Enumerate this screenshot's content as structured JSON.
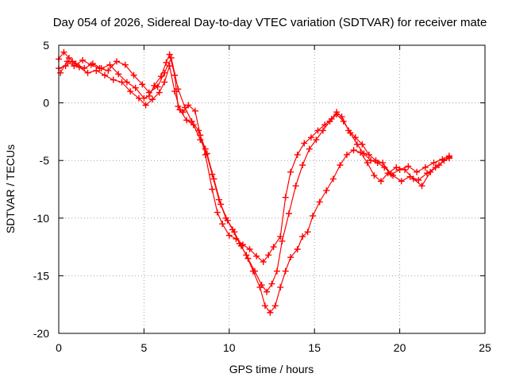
{
  "chart_data": {
    "type": "scatter",
    "title": "Day 054 of 2026, Sidereal Day-to-day VTEC variation (SDTVAR) for receiver mate",
    "xlabel": "GPS time / hours",
    "ylabel": "SDTVAR / TECUs",
    "xlim": [
      0,
      25
    ],
    "ylim": [
      -20,
      5
    ],
    "xticks": [
      "0",
      "5",
      "10",
      "15",
      "20",
      "25"
    ],
    "yticks": [
      "5",
      "0",
      "-5",
      "-10",
      "-15",
      "-20"
    ],
    "grid": true,
    "marker": "+",
    "color": "#ff0000",
    "series": [
      {
        "x": [
          0.0,
          0.3,
          0.6,
          1.0,
          1.5,
          2.0,
          2.5,
          3.0,
          3.5,
          4.0,
          4.5,
          5.0,
          5.3,
          5.6,
          6.0,
          6.3,
          6.5,
          6.8,
          7.0,
          7.3,
          7.6,
          8.0,
          8.3,
          8.6,
          9.0,
          9.3,
          9.6,
          10.0,
          10.4,
          10.8,
          11.2,
          11.6,
          12.0,
          12.3,
          12.6,
          13.0,
          13.3,
          13.6,
          14.0,
          14.4,
          14.8,
          15.2,
          15.6,
          16.0,
          16.3,
          16.6,
          17.0,
          17.4,
          17.8,
          18.2,
          18.6,
          19.0,
          19.5,
          20.0,
          20.5,
          21.0,
          21.5,
          22.0,
          22.5,
          22.9
        ],
        "y": [
          3.8,
          4.4,
          3.9,
          3.4,
          3.0,
          3.4,
          3.0,
          3.3,
          2.5,
          1.8,
          1.3,
          0.4,
          0.6,
          1.5,
          2.3,
          3.5,
          4.2,
          2.4,
          -0.3,
          -0.8,
          -0.2,
          -0.7,
          -2.8,
          -4.5,
          -7.5,
          -9.5,
          -10.5,
          -11.5,
          -11.8,
          -12.3,
          -12.7,
          -13.3,
          -13.8,
          -13.2,
          -12.5,
          -11.6,
          -8.2,
          -6.0,
          -4.5,
          -3.5,
          -3.0,
          -2.4,
          -1.9,
          -1.4,
          -0.8,
          -1.2,
          -2.4,
          -3.0,
          -3.6,
          -4.5,
          -5.0,
          -5.2,
          -6.2,
          -5.8,
          -5.5,
          -6.0,
          -5.6,
          -5.2,
          -4.9,
          -4.6
        ]
      },
      {
        "x": [
          0.0,
          0.4,
          0.8,
          1.2,
          1.7,
          2.2,
          2.7,
          3.2,
          3.7,
          4.2,
          4.7,
          5.1,
          5.5,
          5.9,
          6.2,
          6.5,
          6.8,
          7.1,
          7.5,
          7.9,
          8.3,
          8.7,
          9.1,
          9.5,
          9.9,
          10.3,
          10.7,
          11.1,
          11.5,
          11.9,
          12.2,
          12.5,
          12.8,
          13.1,
          13.5,
          13.9,
          14.3,
          14.7,
          15.1,
          15.5,
          15.9,
          16.3,
          16.7,
          17.1,
          17.5,
          17.9,
          18.3,
          18.7,
          19.1,
          19.6,
          20.1,
          20.6,
          21.1,
          21.6,
          22.1,
          22.6,
          22.9
        ],
        "y": [
          3.0,
          3.2,
          3.6,
          3.1,
          2.6,
          2.8,
          2.4,
          2.0,
          1.8,
          1.0,
          0.4,
          -0.2,
          0.3,
          0.9,
          1.8,
          3.2,
          1.0,
          -0.6,
          -1.5,
          -1.9,
          -3.2,
          -4.4,
          -6.6,
          -8.8,
          -10.2,
          -11.2,
          -12.4,
          -13.5,
          -14.6,
          -15.8,
          -16.4,
          -15.7,
          -14.6,
          -12.0,
          -9.6,
          -7.2,
          -5.4,
          -4.0,
          -3.2,
          -2.4,
          -1.6,
          -1.0,
          -1.6,
          -2.6,
          -3.6,
          -4.4,
          -5.0,
          -5.2,
          -5.6,
          -6.3,
          -6.8,
          -6.4,
          -6.7,
          -6.1,
          -5.6,
          -5.0,
          -4.8
        ]
      },
      {
        "x": [
          0.1,
          0.5,
          0.9,
          1.4,
          1.9,
          2.4,
          2.9,
          3.4,
          3.9,
          4.4,
          4.9,
          5.3,
          5.8,
          6.2,
          6.6,
          7.0,
          7.4,
          7.8,
          8.2,
          8.6,
          9.0,
          9.4,
          9.8,
          10.2,
          10.6,
          11.0,
          11.4,
          11.8,
          12.1,
          12.4,
          12.7,
          13.0,
          13.3,
          13.6,
          14.0,
          14.3,
          14.6,
          14.9,
          15.3,
          15.7,
          16.1,
          16.5,
          16.9,
          17.3,
          17.7,
          18.1,
          18.5,
          18.9,
          19.3,
          19.8,
          20.3,
          20.8,
          21.3,
          21.8,
          22.3,
          22.9
        ],
        "y": [
          2.6,
          3.6,
          3.2,
          3.7,
          3.3,
          3.0,
          2.8,
          3.6,
          3.3,
          2.4,
          1.6,
          0.9,
          1.4,
          2.6,
          3.9,
          1.2,
          -0.4,
          -1.6,
          -2.4,
          -4.0,
          -6.2,
          -8.4,
          -10.0,
          -11.0,
          -12.2,
          -13.2,
          -14.6,
          -16.0,
          -17.6,
          -18.2,
          -17.6,
          -16.0,
          -14.6,
          -13.4,
          -12.7,
          -11.6,
          -11.2,
          -9.8,
          -8.6,
          -7.6,
          -6.6,
          -5.4,
          -4.5,
          -4.1,
          -4.3,
          -5.2,
          -6.3,
          -6.8,
          -6.1,
          -5.6,
          -5.8,
          -6.6,
          -7.2,
          -6.0,
          -5.4,
          -4.7
        ]
      }
    ]
  }
}
